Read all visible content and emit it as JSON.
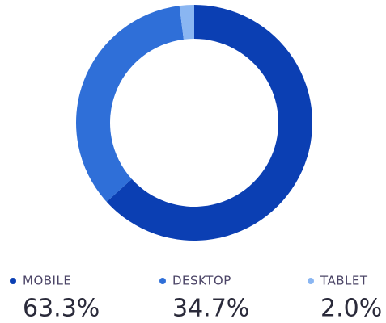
{
  "chart_data": {
    "type": "pie",
    "donut": true,
    "categories": [
      "MOBILE",
      "DESKTOP",
      "TABLET"
    ],
    "values": [
      63.3,
      34.7,
      2.0
    ],
    "value_labels": [
      "63.3%",
      "34.7%",
      "2.0%"
    ],
    "colors": [
      "#0b3fb3",
      "#2f6fd8",
      "#8ab6f2"
    ]
  }
}
